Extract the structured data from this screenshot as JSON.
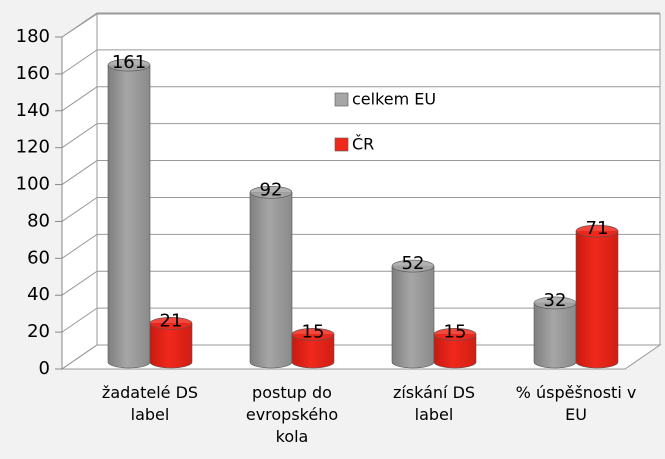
{
  "chart_data": {
    "type": "bar3d",
    "categories": [
      "žadatelé DS label",
      "postup do evropského kola",
      "získání DS label",
      "% úspěšnosti v EU"
    ],
    "series": [
      {
        "name": "celkem EU",
        "color": "#a6a6a6",
        "values": [
          161,
          92,
          52,
          32
        ]
      },
      {
        "name": "ČR",
        "color": "#f0281c",
        "values": [
          21,
          15,
          15,
          71
        ]
      }
    ],
    "ylim": [
      0,
      180
    ],
    "yticks": [
      0,
      20,
      40,
      60,
      80,
      100,
      120,
      140,
      160,
      180
    ],
    "grid": true,
    "legend": "center"
  }
}
